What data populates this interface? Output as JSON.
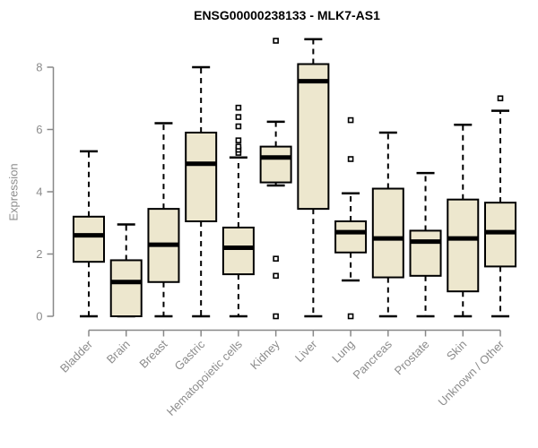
{
  "title": "ENSG00000238133 - MLK7-AS1",
  "chart_data": {
    "type": "boxplot",
    "title": "ENSG00000238133 - MLK7-AS1",
    "xlabel": "",
    "ylabel": "Expression",
    "ylim": [
      0,
      8
    ],
    "yticks": [
      0,
      2,
      4,
      6,
      8
    ],
    "grid": false,
    "legend": false,
    "categories": [
      "Bladder",
      "Brain",
      "Breast",
      "Gastric",
      "Hematopoietic cells",
      "Kidney",
      "Liver",
      "Lung",
      "Pancreas",
      "Prostate",
      "Skin",
      "Unknown / Other"
    ],
    "series": [
      {
        "name": "Bladder",
        "low": 0,
        "q1": 1.75,
        "median": 2.6,
        "q3": 3.2,
        "high": 5.3,
        "outliers": []
      },
      {
        "name": "Brain",
        "low": 0,
        "q1": 0,
        "median": 1.1,
        "q3": 1.8,
        "high": 2.95,
        "outliers": []
      },
      {
        "name": "Breast",
        "low": 0,
        "q1": 1.1,
        "median": 2.3,
        "q3": 3.45,
        "high": 6.2,
        "outliers": []
      },
      {
        "name": "Gastric",
        "low": 0,
        "q1": 3.05,
        "median": 4.9,
        "q3": 5.9,
        "high": 8.0,
        "outliers": []
      },
      {
        "name": "Hematopoietic cells",
        "low": 0,
        "q1": 1.35,
        "median": 2.2,
        "q3": 2.85,
        "high": 5.1,
        "outliers": [
          5.25,
          5.35,
          5.45,
          5.65,
          6.1,
          6.4,
          6.7
        ]
      },
      {
        "name": "Kidney",
        "low": 4.2,
        "q1": 4.3,
        "median": 5.1,
        "q3": 5.45,
        "high": 6.25,
        "outliers": [
          8.85,
          1.85,
          1.3,
          0
        ]
      },
      {
        "name": "Liver",
        "low": 0,
        "q1": 3.45,
        "median": 7.55,
        "q3": 8.1,
        "high": 8.9,
        "outliers": []
      },
      {
        "name": "Lung",
        "low": 1.15,
        "q1": 2.05,
        "median": 2.7,
        "q3": 3.05,
        "high": 3.95,
        "outliers": [
          6.3,
          5.05,
          0
        ]
      },
      {
        "name": "Pancreas",
        "low": 0,
        "q1": 1.25,
        "median": 2.5,
        "q3": 4.1,
        "high": 5.9,
        "outliers": []
      },
      {
        "name": "Prostate",
        "low": 0,
        "q1": 1.3,
        "median": 2.4,
        "q3": 2.75,
        "high": 4.6,
        "outliers": []
      },
      {
        "name": "Skin",
        "low": 0,
        "q1": 0.8,
        "median": 2.5,
        "q3": 3.75,
        "high": 6.15,
        "outliers": []
      },
      {
        "name": "Unknown / Other",
        "low": 0,
        "q1": 1.6,
        "median": 2.7,
        "q3": 3.65,
        "high": 6.6,
        "outliers": [
          7.0
        ]
      }
    ]
  },
  "colors": {
    "box_fill": "#EDE7CE",
    "box_stroke": "#000000",
    "median": "#000000",
    "whisker": "#000000",
    "outlier_fill": "#ffffff",
    "axis": "#888888",
    "tick_label": "#8c8c8c",
    "title": "#000000"
  }
}
